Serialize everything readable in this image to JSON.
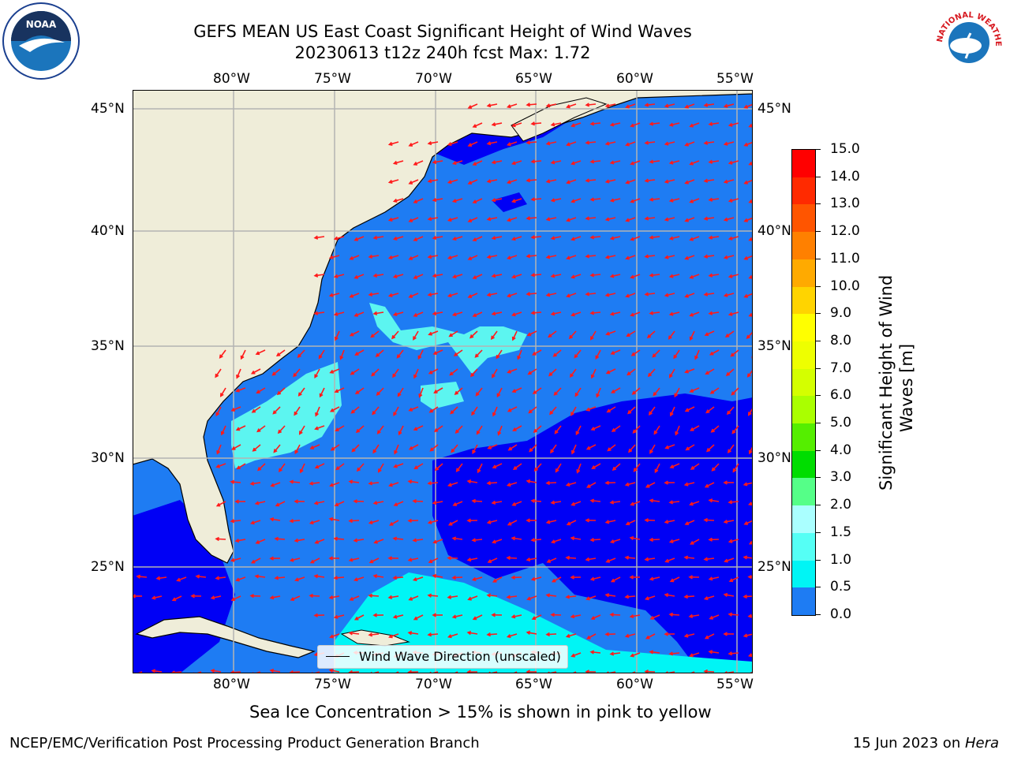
{
  "header": {
    "title_line1": "GEFS MEAN US East Coast Significant Height of Wind Waves",
    "title_line2": "20230613 t12z 240h fcst   Max: 1.72"
  },
  "logos": {
    "left_text": "NOAA",
    "right_text": "NATIONAL WEATHER SERVICE"
  },
  "map": {
    "lon_labels": [
      "80°W",
      "75°W",
      "70°W",
      "65°W",
      "60°W",
      "55°W"
    ],
    "lat_labels": [
      "45°N",
      "40°N",
      "35°N",
      "30°N",
      "25°N"
    ],
    "legend_label": "Wind Wave Direction (unscaled)",
    "colors": {
      "land": "#efedd9",
      "ocean_0": "#0000f5",
      "ocean_05": "#1e7cf3",
      "ocean_1": "#00f5f5",
      "ocean_15": "#5cf5f0",
      "arrow": "#ff1a1a",
      "grid": "#b3b3b3"
    }
  },
  "colorbar": {
    "ticks": [
      "15.0",
      "14.0",
      "13.0",
      "12.0",
      "11.0",
      "10.0",
      "9.0",
      "8.0",
      "7.0",
      "6.0",
      "5.0",
      "4.0",
      "3.0",
      "2.0",
      "1.5",
      "1.0",
      "0.5",
      "0.0"
    ],
    "colors": [
      "#ff0000",
      "#ff2a00",
      "#ff5500",
      "#ff8000",
      "#ffaa00",
      "#ffd400",
      "#ffff00",
      "#eeff00",
      "#d4ff00",
      "#aaff00",
      "#55ee00",
      "#00dd00",
      "#55ff88",
      "#aaffff",
      "#55fff5",
      "#00f5f5",
      "#1e7cf3",
      "#0000f5"
    ],
    "label_line1": "Significant Height of Wind",
    "label_line2": "Waves [m]"
  },
  "footer": {
    "note": "Sea Ice Concentration > 15% is shown in pink to yellow",
    "left": "NCEP/EMC/Verification Post Processing Product Generation Branch",
    "right_prefix": "15 Jun 2023 on ",
    "right_machine": "Hera"
  }
}
